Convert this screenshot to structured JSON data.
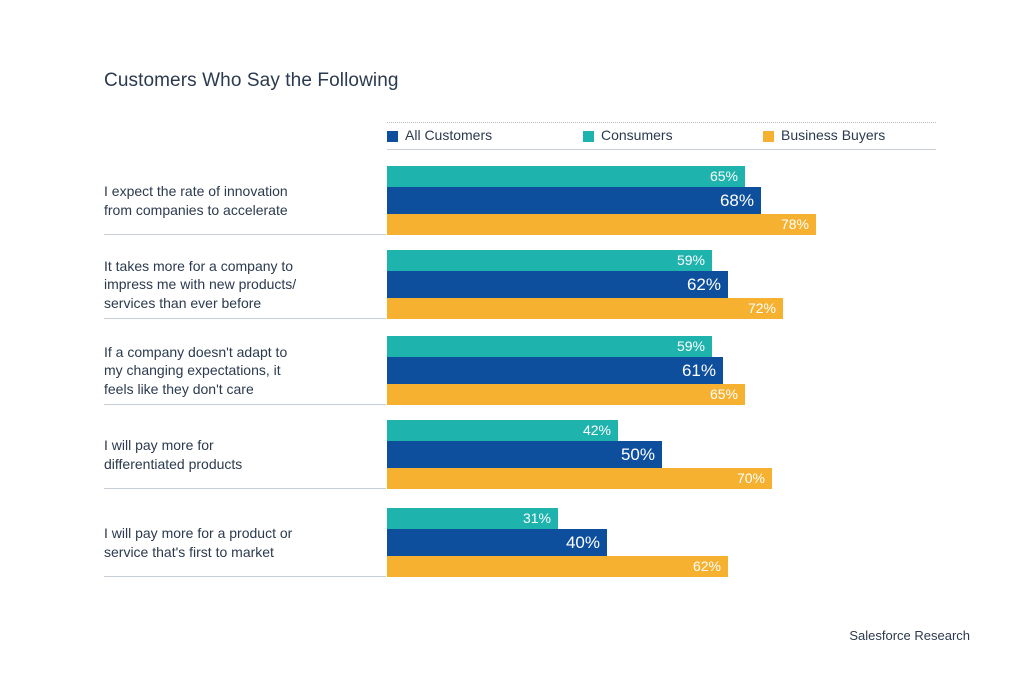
{
  "chart_data": {
    "type": "bar",
    "orientation": "horizontal",
    "title": "Customers Who Say the Following",
    "categories": [
      "I expect the rate of innovation from companies to accelerate",
      "It takes more for a company to impress me with new products/ services than ever before",
      "If a company doesn't adapt to my changing expectations, it feels like they don't care",
      "I will pay more for differentiated products",
      "I will pay more for a product or service that's first to market"
    ],
    "category_lines": [
      [
        "I expect the rate of innovation",
        "from companies to accelerate"
      ],
      [
        "It takes more for a company to",
        "impress me with new products/",
        "services than ever before"
      ],
      [
        "If a company doesn't adapt to",
        "my changing expectations, it",
        "feels like they don't care"
      ],
      [
        "I will pay more for",
        "differentiated products"
      ],
      [
        "I will pay more for a product or",
        "service that's first to market"
      ]
    ],
    "bar_order": [
      "Consumers",
      "All Customers",
      "Business Buyers"
    ],
    "series": [
      {
        "name": "All Customers",
        "color": "#0d4f9c",
        "values": [
          68,
          62,
          61,
          50,
          40
        ],
        "labels": [
          "68%",
          "62%",
          "61%",
          "50%",
          "40%"
        ]
      },
      {
        "name": "Consumers",
        "color": "#1fb3ae",
        "values": [
          65,
          59,
          59,
          42,
          31
        ],
        "labels": [
          "65%",
          "59%",
          "59%",
          "42%",
          "31%"
        ]
      },
      {
        "name": "Business Buyers",
        "color": "#f6b131",
        "values": [
          78,
          72,
          65,
          70,
          62
        ],
        "labels": [
          "78%",
          "72%",
          "65%",
          "70%",
          "62%"
        ]
      }
    ],
    "xlim": [
      0,
      100
    ],
    "unit": "%",
    "legend_position": "top"
  },
  "source": "Salesforce Research"
}
